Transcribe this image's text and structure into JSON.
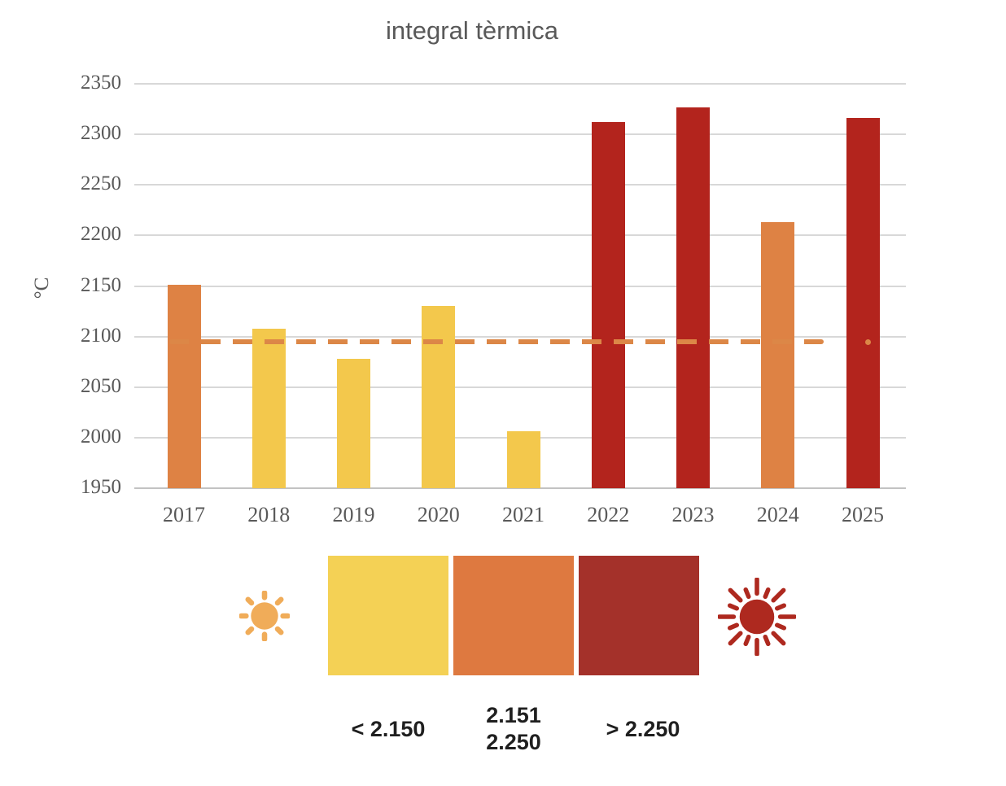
{
  "chart_data": {
    "type": "bar",
    "title": "integral tèrmica",
    "ylabel": "°C",
    "categories": [
      "2017",
      "2018",
      "2019",
      "2020",
      "2021",
      "2022",
      "2023",
      "2024",
      "2025"
    ],
    "values": [
      2151,
      2108,
      2078,
      2130,
      2006,
      2312,
      2327,
      2213,
      2316
    ],
    "bar_colors": [
      "#DE8244",
      "#F3C84C",
      "#F3C84C",
      "#F3C84C",
      "#F3C84C",
      "#B3241D",
      "#B3241D",
      "#DE8244",
      "#B3241D"
    ],
    "ylim": [
      1950,
      2350
    ],
    "yticks": [
      2350,
      2300,
      2250,
      2200,
      2150,
      2100,
      2050,
      2000,
      1950
    ],
    "grid": true,
    "legend_position": "bottom",
    "reference_line": {
      "value": 2095,
      "style": "dashed",
      "color": "#DC8747"
    }
  },
  "legend": {
    "swatches": [
      {
        "category": "low",
        "label": "< 2.150",
        "color": "#F4D155"
      },
      {
        "category": "mid",
        "label": "2.151 2.250",
        "label_line1": "2.151",
        "label_line2": "2.250",
        "color": "#DE7940"
      },
      {
        "category": "high",
        "label": "> 2.250",
        "color": "#A4312A"
      }
    ],
    "icons": {
      "left": "sun-mild",
      "left_color": "#F0AC59",
      "right": "sun-intense",
      "right_color": "#AE291F"
    }
  }
}
